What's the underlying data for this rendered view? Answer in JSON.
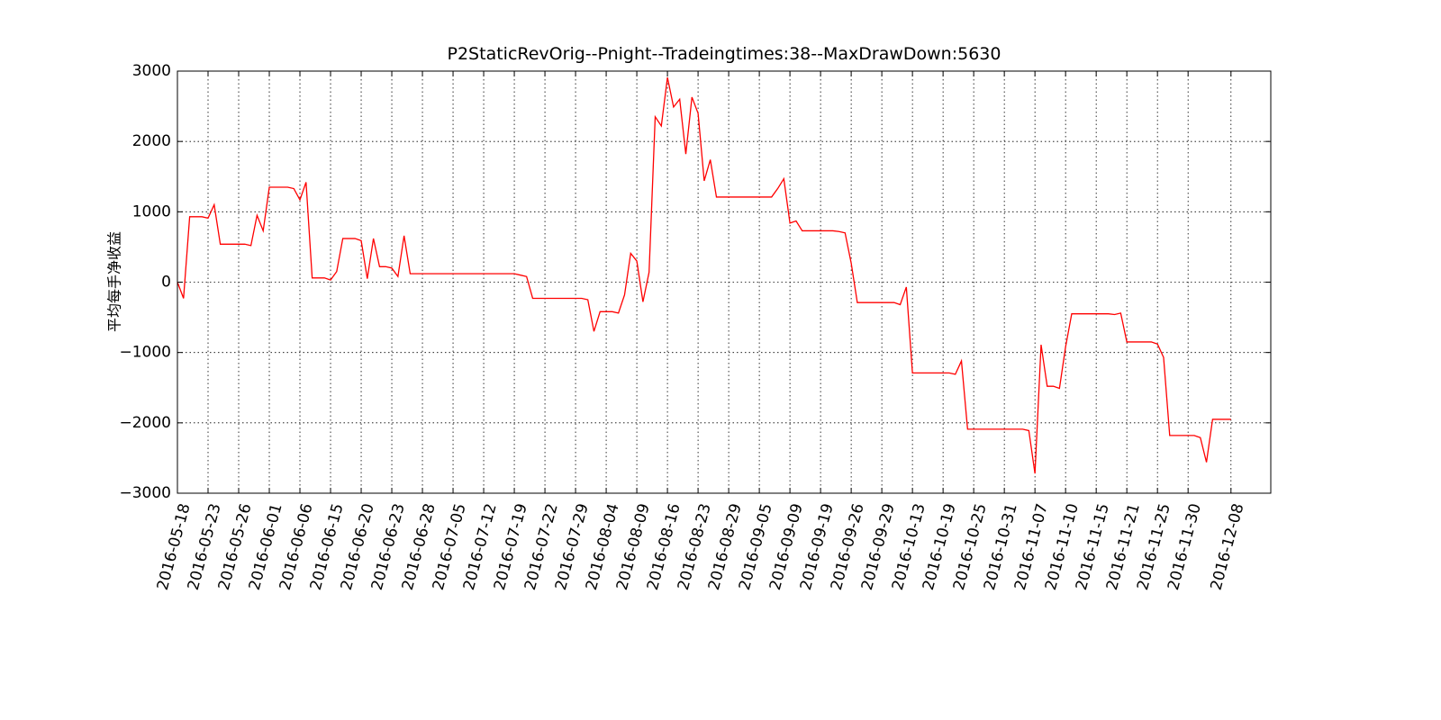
{
  "chart_data": {
    "type": "line",
    "title": "P2StaticRevOrig--Pnight--Tradeingtimes:38--MaxDrawDown:5630",
    "y_label": "平均每手净收益",
    "color": "#ff0000",
    "grid": true,
    "ylim": [
      -3000,
      3000
    ],
    "yticks": [
      {
        "value": -3000,
        "label": "−3000"
      },
      {
        "value": -2000,
        "label": "−2000"
      },
      {
        "value": -1000,
        "label": "−1000"
      },
      0,
      1000,
      2000,
      3000
    ],
    "categories": [
      "2016-05-18",
      null,
      null,
      null,
      null,
      "2016-05-23",
      null,
      null,
      null,
      null,
      "2016-05-26",
      null,
      null,
      null,
      null,
      "2016-06-01",
      null,
      null,
      null,
      null,
      "2016-06-06",
      null,
      null,
      null,
      null,
      "2016-06-15",
      null,
      null,
      null,
      null,
      "2016-06-20",
      null,
      null,
      null,
      null,
      "2016-06-23",
      null,
      null,
      null,
      null,
      "2016-06-28",
      null,
      null,
      null,
      null,
      "2016-07-05",
      null,
      null,
      null,
      null,
      "2016-07-12",
      null,
      null,
      null,
      null,
      "2016-07-19",
      null,
      null,
      null,
      null,
      "2016-07-22",
      null,
      null,
      null,
      null,
      "2016-07-29",
      null,
      null,
      null,
      null,
      "2016-08-04",
      null,
      null,
      null,
      null,
      "2016-08-09",
      null,
      null,
      null,
      null,
      "2016-08-16",
      null,
      null,
      null,
      null,
      "2016-08-23",
      null,
      null,
      null,
      null,
      "2016-08-29",
      null,
      null,
      null,
      null,
      "2016-09-05",
      null,
      null,
      null,
      null,
      "2016-09-09",
      null,
      null,
      null,
      null,
      "2016-09-19",
      null,
      null,
      null,
      null,
      "2016-09-26",
      null,
      null,
      null,
      null,
      "2016-09-29",
      null,
      null,
      null,
      null,
      "2016-10-13",
      null,
      null,
      null,
      null,
      "2016-10-19",
      null,
      null,
      null,
      null,
      "2016-10-25",
      null,
      null,
      null,
      null,
      "2016-10-31",
      null,
      null,
      null,
      null,
      "2016-11-07",
      null,
      null,
      null,
      null,
      "2016-11-10",
      null,
      null,
      null,
      null,
      "2016-11-15",
      null,
      null,
      null,
      null,
      "2016-11-21",
      null,
      null,
      null,
      null,
      "2016-11-25",
      null,
      null,
      null,
      null,
      "2016-11-30",
      null,
      null,
      null,
      null,
      null,
      null,
      "2016-12-08"
    ],
    "values": [
      0,
      -230,
      930,
      930,
      930,
      910,
      1100,
      540,
      540,
      540,
      540,
      540,
      520,
      950,
      730,
      1350,
      1350,
      1350,
      1350,
      1330,
      1170,
      1420,
      60,
      60,
      60,
      30,
      150,
      620,
      620,
      620,
      590,
      50,
      620,
      220,
      220,
      200,
      80,
      660,
      120,
      120,
      120,
      120,
      120,
      120,
      120,
      120,
      120,
      120,
      120,
      120,
      120,
      120,
      120,
      120,
      120,
      120,
      100,
      80,
      -230,
      -230,
      -230,
      -230,
      -230,
      -230,
      -230,
      -230,
      -230,
      -250,
      -700,
      -420,
      -420,
      -420,
      -440,
      -180,
      410,
      300,
      -280,
      140,
      2350,
      2220,
      2910,
      2490,
      2600,
      1820,
      2630,
      2400,
      1440,
      1740,
      1210,
      1210,
      1210,
      1210,
      1210,
      1210,
      1210,
      1210,
      1210,
      1210,
      1330,
      1470,
      840,
      870,
      730,
      730,
      730,
      730,
      730,
      730,
      720,
      700,
      270,
      -290,
      -290,
      -290,
      -290,
      -290,
      -290,
      -290,
      -320,
      -70,
      -1290,
      -1290,
      -1290,
      -1290,
      -1290,
      -1290,
      -1290,
      -1310,
      -1120,
      -2090,
      -2090,
      -2090,
      -2090,
      -2090,
      -2090,
      -2090,
      -2090,
      -2090,
      -2090,
      -2110,
      -2720,
      -890,
      -1480,
      -1480,
      -1510,
      -920,
      -450,
      -450,
      -450,
      -450,
      -450,
      -450,
      -450,
      -460,
      -440,
      -850,
      -850,
      -850,
      -850,
      -850,
      -880,
      -1070,
      -2180,
      -2180,
      -2180,
      -2180,
      -2180,
      -2210,
      -2560,
      -1950,
      -1950,
      -1950,
      -1950
    ]
  }
}
